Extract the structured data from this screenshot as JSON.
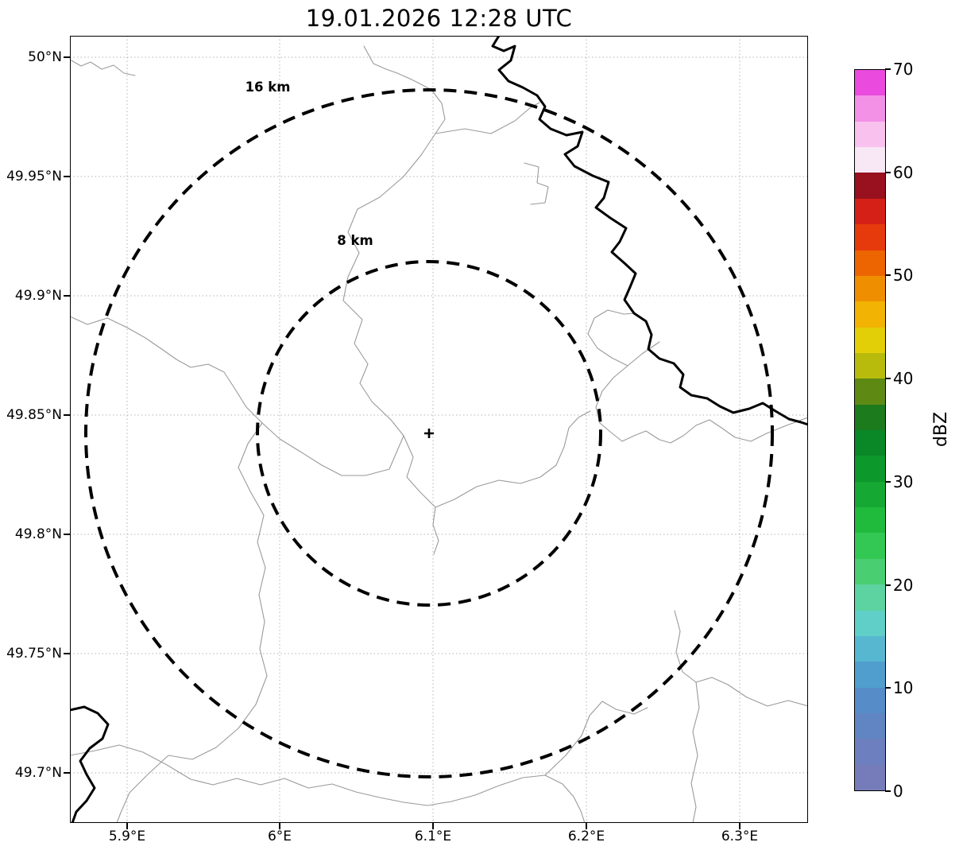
{
  "title": "19.01.2026 12:28 UTC",
  "map": {
    "yticks": [
      "50°N",
      "49.95°N",
      "49.9°N",
      "49.85°N",
      "49.8°N",
      "49.75°N",
      "49.7°N"
    ],
    "xticks": [
      "5.9°E",
      "6°E",
      "6.1°E",
      "6.2°E",
      "6.3°E"
    ],
    "rings": {
      "outer_label": "16 km",
      "inner_label": "8 km"
    }
  },
  "colorbar": {
    "label": "dBZ",
    "ticks": [
      "70",
      "60",
      "50",
      "40",
      "30",
      "20",
      "10",
      "0"
    ],
    "min": 0,
    "max": 70,
    "step_dbz": 2.5,
    "colors_bottom_to_top": [
      "#767cb9",
      "#6d7fbe",
      "#6184c3",
      "#568cc8",
      "#509ecd",
      "#57b7d1",
      "#60cfc8",
      "#5cd3a0",
      "#4ace72",
      "#33c853",
      "#20ba3d",
      "#15a933",
      "#0d982b",
      "#0a8726",
      "#1b7b1d",
      "#5e8a14",
      "#b9bb0c",
      "#e3cf07",
      "#f2b303",
      "#ef8f00",
      "#ec6501",
      "#e73a0c",
      "#d52017",
      "#99101e",
      "#f8e7f5",
      "#f8c1ee",
      "#f391e7",
      "#ea4ade"
    ]
  },
  "chart_data": {
    "type": "radar-reflectivity-map",
    "title": "19.01.2026 12:28 UTC",
    "timestamp_utc": "19.01.2026 12:28",
    "lon_ticks_deg_e": [
      5.9,
      6.0,
      6.1,
      6.2,
      6.3
    ],
    "lat_ticks_deg_n": [
      50.0,
      49.95,
      49.9,
      49.85,
      49.8,
      49.75,
      49.7
    ],
    "range_rings_km": [
      8,
      16
    ],
    "radar_center": {
      "lon_deg_e": 6.1,
      "lat_deg_n": 49.84
    },
    "colorbar": {
      "label": "dBZ",
      "range": [
        0,
        70
      ],
      "tick_interval": 10
    },
    "reflectivity_data": "no echoes visible on map"
  }
}
